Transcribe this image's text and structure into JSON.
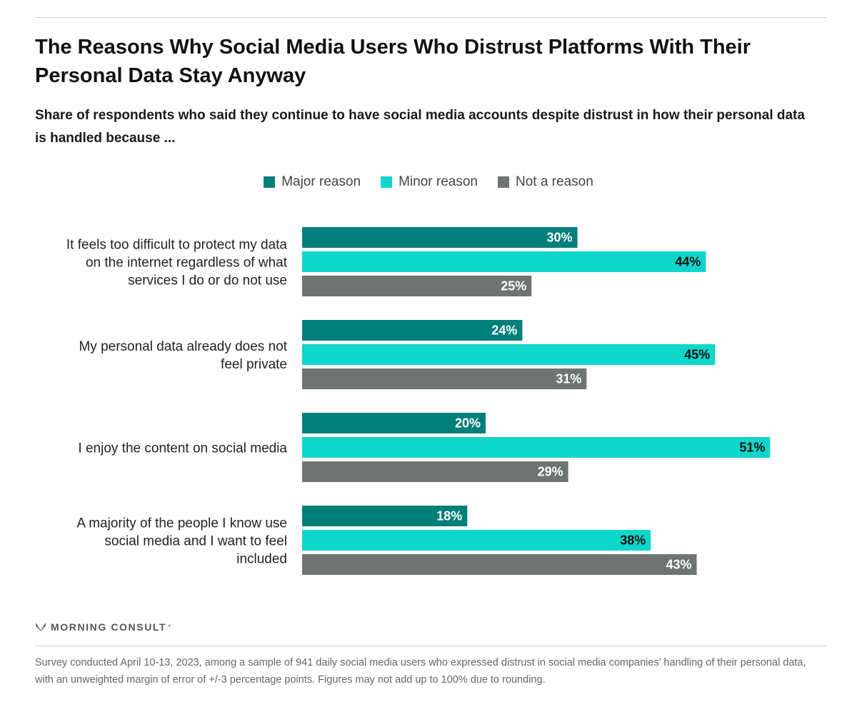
{
  "chart_data": {
    "type": "bar",
    "orientation": "horizontal",
    "title": "The Reasons Why Social Media Users Who Distrust Platforms With Their Personal Data Stay Anyway",
    "subtitle": "Share of respondents who said they continue to have social media accounts despite distrust in how their personal data is handled because ...",
    "categories": [
      [
        "It feels too difficult to protect my data",
        "on the internet regardless of what",
        "services I do or do not use"
      ],
      [
        "My personal data already does not",
        "feel private"
      ],
      [
        "I enjoy the content on social media"
      ],
      [
        "A majority of the people I know use",
        "social media and I want to feel",
        "included"
      ]
    ],
    "series": [
      {
        "name": "Major reason",
        "color": "#007f7a",
        "label_color": "#ffffff",
        "values": [
          30,
          24,
          20,
          18
        ]
      },
      {
        "name": "Minor reason",
        "color": "#0fd6cb",
        "label_color": "#111111",
        "values": [
          44,
          45,
          51,
          38
        ]
      },
      {
        "name": "Not a reason",
        "color": "#6f7472",
        "label_color": "#ffffff",
        "values": [
          25,
          31,
          29,
          43
        ]
      }
    ],
    "value_suffix": "%",
    "xlim": [
      0,
      100
    ],
    "legend_position": "top-center",
    "grid": false
  },
  "brand": {
    "name": "MORNING CONSULT",
    "mark": "°"
  },
  "footnote": "Survey conducted April 10-13, 2023, among a sample of 941 daily social media users who expressed distrust in social media companies’ handling of their personal data, with an unweighted margin of error of +/-3 percentage points. Figures may not add up to 100% due to rounding."
}
